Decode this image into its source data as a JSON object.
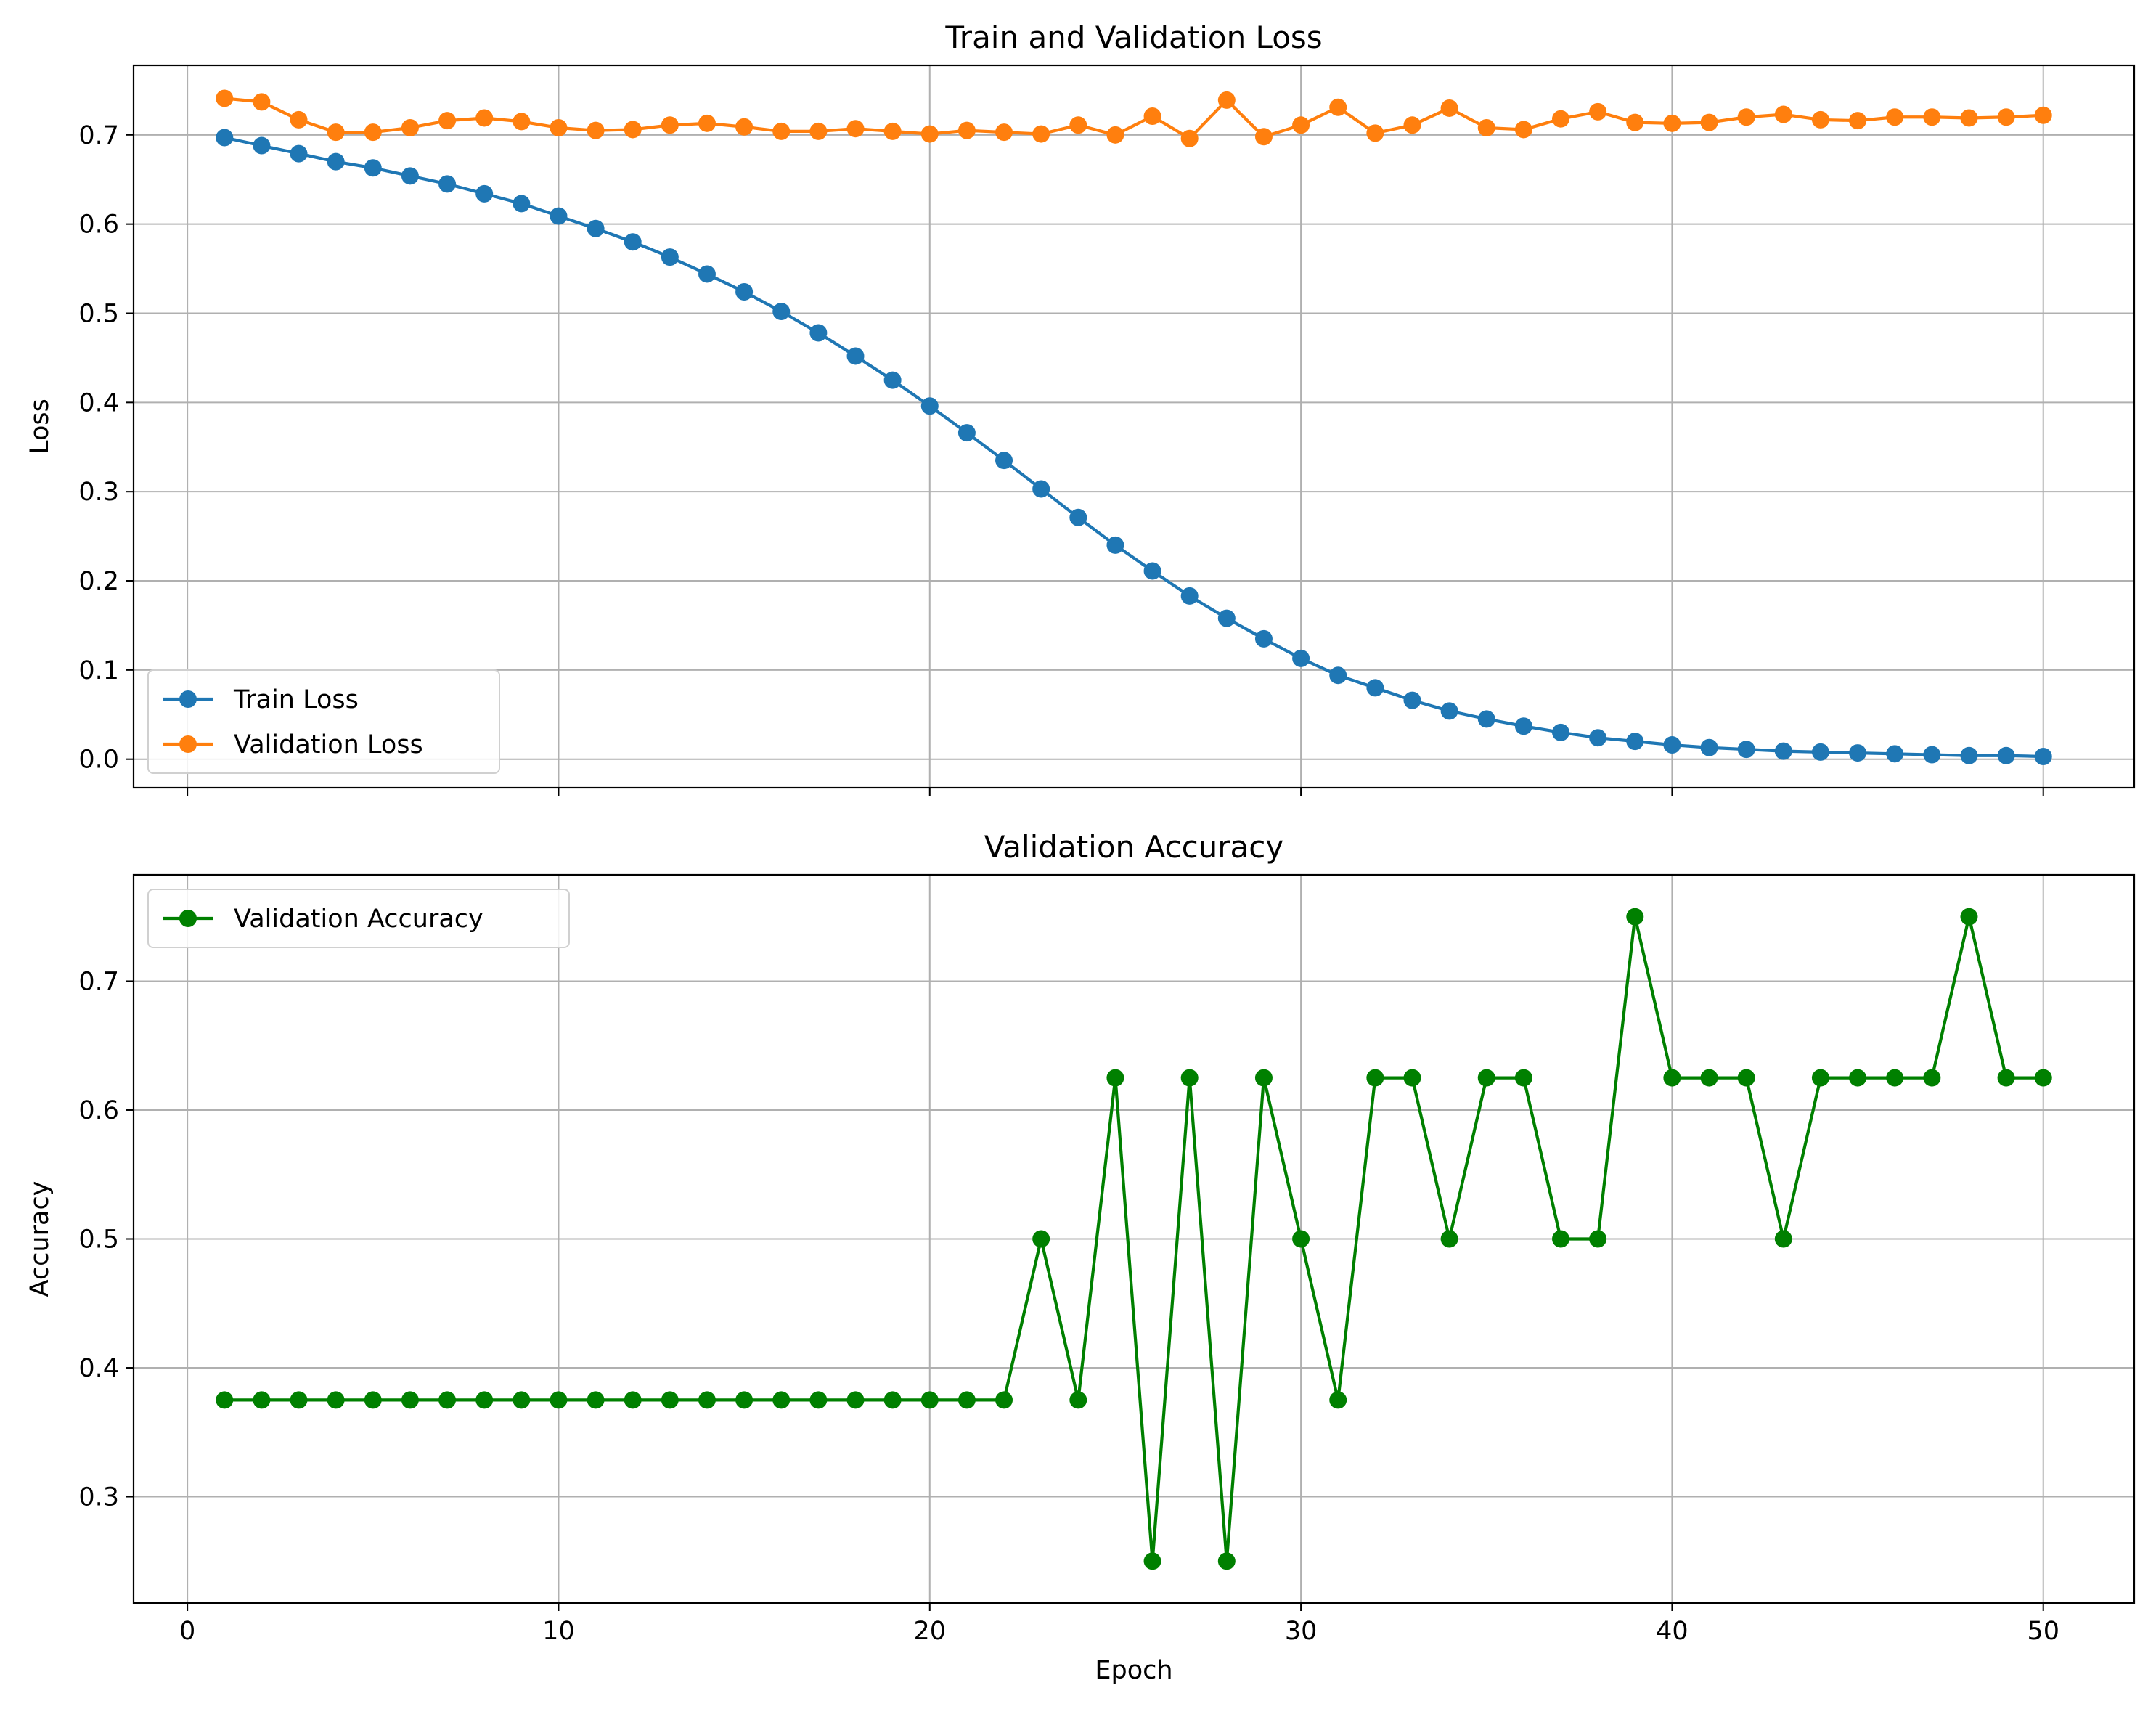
{
  "chart_data": [
    {
      "type": "line",
      "title": "Train and Validation Loss",
      "xlabel": "",
      "ylabel": "Loss",
      "xlim": [
        -1.45,
        52.45
      ],
      "ylim": [
        -0.032,
        0.778
      ],
      "xticks": [
        0,
        10,
        20,
        30,
        40,
        50
      ],
      "yticks": [
        0.0,
        0.1,
        0.2,
        0.3,
        0.4,
        0.5,
        0.6,
        0.7
      ],
      "show_x_tick_labels": false,
      "grid": true,
      "legend_position": "lower-left",
      "x": [
        1,
        2,
        3,
        4,
        5,
        6,
        7,
        8,
        9,
        10,
        11,
        12,
        13,
        14,
        15,
        16,
        17,
        18,
        19,
        20,
        21,
        22,
        23,
        24,
        25,
        26,
        27,
        28,
        29,
        30,
        31,
        32,
        33,
        34,
        35,
        36,
        37,
        38,
        39,
        40,
        41,
        42,
        43,
        44,
        45,
        46,
        47,
        48,
        49,
        50
      ],
      "series": [
        {
          "name": "Train Loss",
          "color": "#1f77b4",
          "values": [
            0.697,
            0.688,
            0.679,
            0.67,
            0.663,
            0.654,
            0.645,
            0.634,
            0.623,
            0.609,
            0.595,
            0.58,
            0.563,
            0.544,
            0.524,
            0.502,
            0.478,
            0.452,
            0.425,
            0.396,
            0.366,
            0.335,
            0.303,
            0.271,
            0.24,
            0.211,
            0.183,
            0.158,
            0.135,
            0.113,
            0.094,
            0.08,
            0.066,
            0.054,
            0.045,
            0.037,
            0.03,
            0.024,
            0.02,
            0.016,
            0.013,
            0.011,
            0.009,
            0.008,
            0.007,
            0.006,
            0.005,
            0.004,
            0.004,
            0.003
          ]
        },
        {
          "name": "Validation Loss",
          "color": "#ff7f0e",
          "values": [
            0.741,
            0.737,
            0.717,
            0.703,
            0.703,
            0.708,
            0.716,
            0.719,
            0.715,
            0.708,
            0.705,
            0.706,
            0.711,
            0.713,
            0.709,
            0.704,
            0.704,
            0.707,
            0.704,
            0.701,
            0.705,
            0.703,
            0.701,
            0.711,
            0.7,
            0.721,
            0.696,
            0.739,
            0.698,
            0.711,
            0.731,
            0.702,
            0.711,
            0.73,
            0.708,
            0.706,
            0.718,
            0.726,
            0.714,
            0.713,
            0.714,
            0.72,
            0.723,
            0.717,
            0.716,
            0.72,
            0.72,
            0.719,
            0.72,
            0.722
          ]
        }
      ]
    },
    {
      "type": "line",
      "title": "Validation Accuracy",
      "xlabel": "Epoch",
      "ylabel": "Accuracy",
      "xlim": [
        -1.45,
        52.45
      ],
      "ylim": [
        0.2175,
        0.7825
      ],
      "xticks": [
        0,
        10,
        20,
        30,
        40,
        50
      ],
      "yticks": [
        0.3,
        0.4,
        0.5,
        0.6,
        0.7
      ],
      "show_x_tick_labels": true,
      "grid": true,
      "legend_position": "upper-left",
      "x": [
        1,
        2,
        3,
        4,
        5,
        6,
        7,
        8,
        9,
        10,
        11,
        12,
        13,
        14,
        15,
        16,
        17,
        18,
        19,
        20,
        21,
        22,
        23,
        24,
        25,
        26,
        27,
        28,
        29,
        30,
        31,
        32,
        33,
        34,
        35,
        36,
        37,
        38,
        39,
        40,
        41,
        42,
        43,
        44,
        45,
        46,
        47,
        48,
        49,
        50
      ],
      "series": [
        {
          "name": "Validation Accuracy",
          "color": "#008000",
          "values": [
            0.375,
            0.375,
            0.375,
            0.375,
            0.375,
            0.375,
            0.375,
            0.375,
            0.375,
            0.375,
            0.375,
            0.375,
            0.375,
            0.375,
            0.375,
            0.375,
            0.375,
            0.375,
            0.375,
            0.375,
            0.375,
            0.375,
            0.5,
            0.375,
            0.625,
            0.25,
            0.625,
            0.25,
            0.625,
            0.5,
            0.375,
            0.625,
            0.625,
            0.5,
            0.625,
            0.625,
            0.5,
            0.5,
            0.75,
            0.625,
            0.625,
            0.625,
            0.5,
            0.625,
            0.625,
            0.625,
            0.625,
            0.75,
            0.625,
            0.625
          ]
        }
      ]
    }
  ]
}
